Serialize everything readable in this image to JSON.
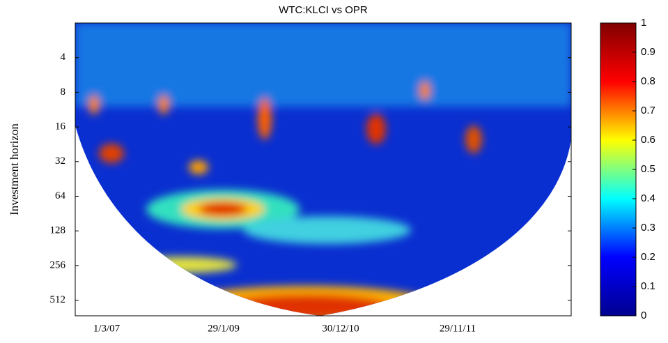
{
  "chart_data": {
    "type": "heatmap",
    "title": "WTC:KLCI vs OPR",
    "y_label": "Investment horizon",
    "yscale": "log",
    "y_inverted": true,
    "ylim": [
      2,
      700
    ],
    "yticks": [
      4,
      8,
      16,
      32,
      64,
      128,
      256,
      512
    ],
    "x_tick_labels": [
      "1/3/07",
      "29/1/09",
      "30/12/10",
      "29/11/11"
    ],
    "colorbar": {
      "clim": [
        0,
        1
      ],
      "ticks": [
        0,
        0.1,
        0.2,
        0.3,
        0.4,
        0.5,
        0.6,
        0.7,
        0.8,
        0.9,
        1
      ],
      "colors": [
        "#00008f",
        "#0000ff",
        "#00ffff",
        "#ffff00",
        "#ff0000",
        "#800000"
      ]
    }
  }
}
